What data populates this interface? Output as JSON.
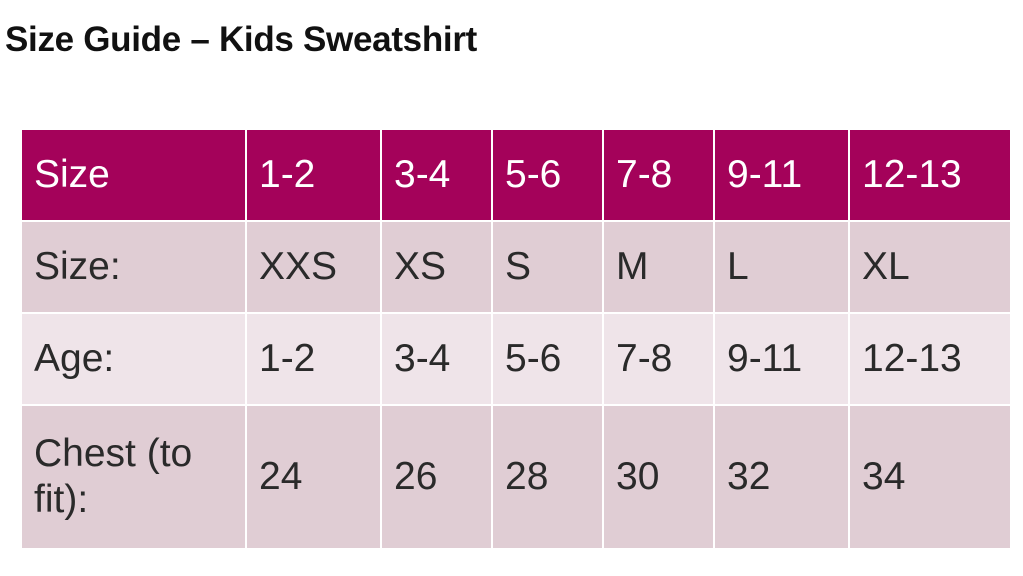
{
  "title": "Size Guide – Kids Sweatshirt",
  "table": {
    "header": [
      "Size",
      "1-2",
      "3-4",
      "5-6",
      "7-8",
      "9-11",
      "12-13"
    ],
    "rows": [
      [
        "Size:",
        "XXS",
        "XS",
        "S",
        "M",
        "L",
        "XL"
      ],
      [
        "Age:",
        "1-2",
        "3-4",
        "5-6",
        "7-8",
        "9-11",
        "12-13"
      ],
      [
        "Chest (to fit):",
        "24",
        "26",
        "28",
        "30",
        "32",
        "34"
      ]
    ]
  }
}
